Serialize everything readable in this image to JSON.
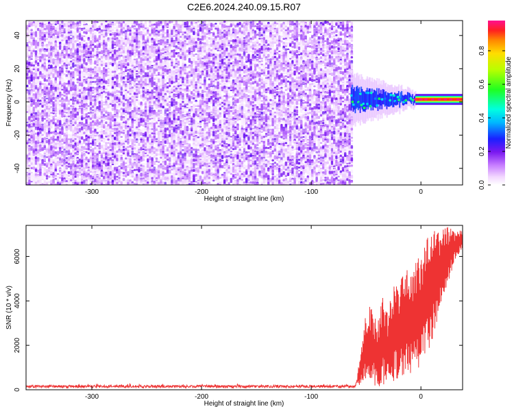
{
  "title": "C2E6.2024.240.09.15.R07",
  "chart_data": [
    {
      "type": "heatmap",
      "xlabel": "Height of straight line (km)",
      "ylabel": "Frequency (Hz)",
      "xlim": [
        -360,
        38
      ],
      "ylim": [
        -50,
        49
      ],
      "xticks": [
        -300,
        -200,
        -100,
        0
      ],
      "yticks": [
        -40,
        -20,
        0,
        20,
        40
      ],
      "colorbar": {
        "label": "Normalized spectral amplitude",
        "range": [
          0,
          0.98
        ],
        "ticks": [
          0.0,
          0.2,
          0.4,
          0.6,
          0.8
        ],
        "tick_labels": [
          "0.0",
          "0.2",
          "0.4",
          "0.6",
          "0.8"
        ]
      },
      "regions": [
        {
          "name": "noise",
          "x_range": [
            -360,
            -64
          ],
          "freq_range": [
            -50,
            49
          ],
          "amplitude": [
            0.02,
            0.22
          ]
        },
        {
          "name": "signal-onset",
          "x_range": [
            -64,
            -5
          ],
          "freq_center": 1.5,
          "freq_halfwidth": [
            2,
            7
          ],
          "amplitude": [
            0.3,
            0.55
          ]
        },
        {
          "name": "carrier",
          "x_range": [
            -5,
            38
          ],
          "freq_center": 1.5,
          "freq_halfwidth": 1.5,
          "amplitude": [
            0.8,
            0.95
          ]
        }
      ]
    },
    {
      "type": "line",
      "xlabel": "Height of straight line (km)",
      "ylabel": "SNR (10 * v/v)",
      "xlim": [
        -360,
        38
      ],
      "ylim": [
        0,
        7400
      ],
      "xticks": [
        -300,
        -200,
        -100,
        0
      ],
      "yticks": [
        0,
        2000,
        4000,
        6000
      ],
      "series": [
        {
          "color": "#ee3333",
          "x": [
            -360,
            -300,
            -200,
            -100,
            -60,
            -55,
            -50,
            -45,
            -40,
            -35,
            -30,
            -25,
            -20,
            -15,
            -10,
            -5,
            0,
            5,
            10,
            15,
            20,
            25,
            30,
            35,
            38
          ],
          "y": [
            150,
            150,
            150,
            150,
            150,
            900,
            1900,
            2000,
            1500,
            2200,
            1800,
            2600,
            2600,
            3100,
            2900,
            3300,
            3600,
            4100,
            4600,
            5200,
            5600,
            6100,
            6400,
            6700,
            6800
          ],
          "noise_amplitude": [
            0.55,
            0.55,
            0.55,
            0.55,
            0.55,
            0.75,
            0.9,
            0.9,
            0.95,
            0.9,
            0.9,
            0.85,
            0.85,
            0.8,
            0.8,
            0.75,
            0.7,
            0.65,
            0.55,
            0.4,
            0.3,
            0.2,
            0.12,
            0.08,
            0.08
          ]
        }
      ]
    }
  ]
}
